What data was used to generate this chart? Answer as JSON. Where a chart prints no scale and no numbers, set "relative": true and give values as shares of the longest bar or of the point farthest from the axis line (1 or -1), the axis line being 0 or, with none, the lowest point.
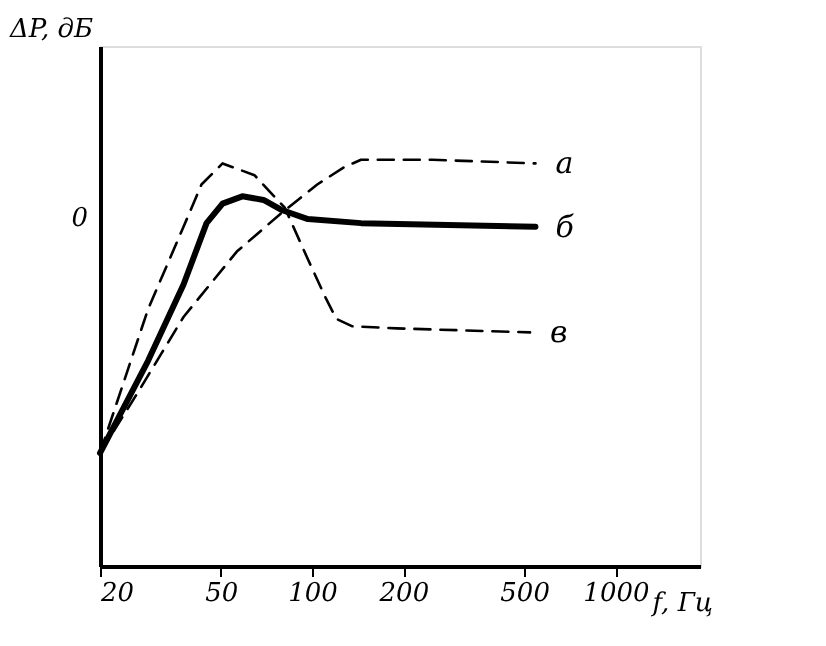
{
  "chart_data": {
    "type": "line",
    "relative": true,
    "xlabel": "f, Гц",
    "ylabel": "ΔP, дБ",
    "log": "x",
    "xlim": [
      20,
      1900
    ],
    "xticks": [
      20,
      50,
      100,
      200,
      500,
      1000
    ],
    "annotations": [
      "0"
    ],
    "grid": false,
    "legend": false,
    "marker": "none",
    "series": [
      {
        "name": "а",
        "color": "#000000",
        "line_style": "dashed",
        "x": [
          20,
          27,
          37.7,
          56.5,
          79,
          104,
          127,
          145,
          249,
          545
        ],
        "values": [
          0.278,
          0.434,
          0.613,
          0.774,
          0.868,
          0.939,
          0.981,
          1,
          1,
          0.991
        ]
      },
      {
        "name": "б",
        "color": "#000000",
        "line_style": "solid",
        "x": [
          20,
          28.8,
          37.7,
          44.9,
          50.7,
          58.9,
          69.2,
          79,
          96.9,
          145,
          545
        ],
        "values": [
          0.278,
          0.505,
          0.693,
          0.844,
          0.892,
          0.91,
          0.901,
          0.877,
          0.854,
          0.844,
          0.835
        ]
      },
      {
        "name": "в",
        "color": "#000000",
        "line_style": "dashed",
        "x": [
          20,
          28.8,
          37.7,
          43.2,
          50.7,
          64.6,
          81.3,
          96.9,
          110.9,
          120.3,
          135.8,
          190,
          523
        ],
        "values": [
          0.278,
          0.632,
          0.835,
          0.939,
          0.991,
          0.962,
          0.882,
          0.755,
          0.66,
          0.608,
          0.59,
          0.585,
          0.575
        ]
      }
    ]
  }
}
